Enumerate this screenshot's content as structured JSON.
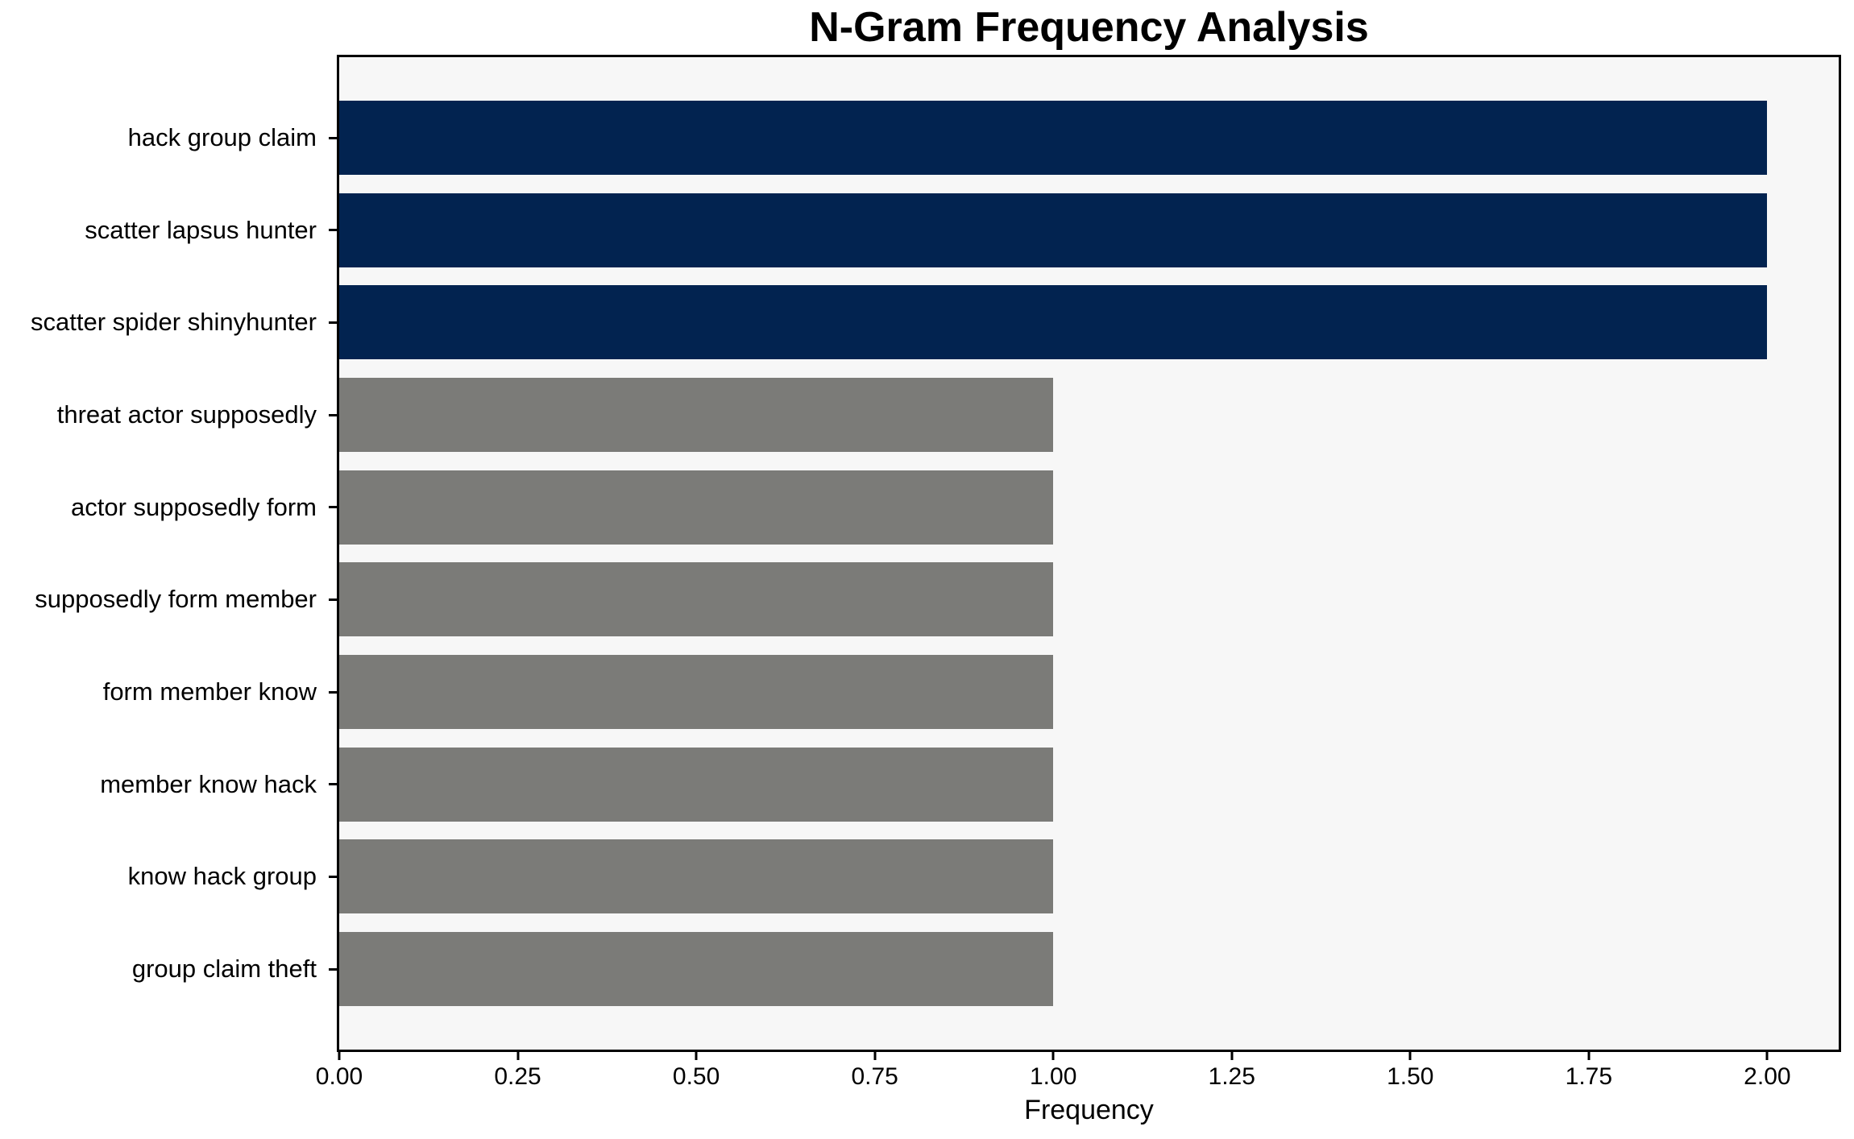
{
  "figure": {
    "background": "#ffffff"
  },
  "chart_data": {
    "type": "bar",
    "orientation": "horizontal",
    "title": "N-Gram Frequency Analysis",
    "xlabel": "Frequency",
    "ylabel": "",
    "categories": [
      "hack group claim",
      "scatter lapsus hunter",
      "scatter spider shinyhunter",
      "threat actor supposedly",
      "actor supposedly form",
      "supposedly form member",
      "form member know",
      "member know hack",
      "know hack group",
      "group claim theft"
    ],
    "values": [
      2,
      2,
      2,
      1,
      1,
      1,
      1,
      1,
      1,
      1
    ],
    "bar_colors": [
      "#022350",
      "#022350",
      "#022350",
      "#7b7b78",
      "#7b7b78",
      "#7b7b78",
      "#7b7b78",
      "#7b7b78",
      "#7b7b78",
      "#7b7b78"
    ],
    "highlight_color": "#022350",
    "base_color": "#7b7b78",
    "xlim": [
      0,
      2.1
    ],
    "xtick_values": [
      0,
      0.25,
      0.5,
      0.75,
      1.0,
      1.25,
      1.5,
      1.75,
      2.0
    ],
    "xtick_labels": [
      "0.00",
      "0.25",
      "0.50",
      "0.75",
      "1.00",
      "1.25",
      "1.50",
      "1.75",
      "2.00"
    ],
    "grid": false,
    "legend": false,
    "plot_background": "#f7f7f7",
    "spine_color": "#000000"
  }
}
